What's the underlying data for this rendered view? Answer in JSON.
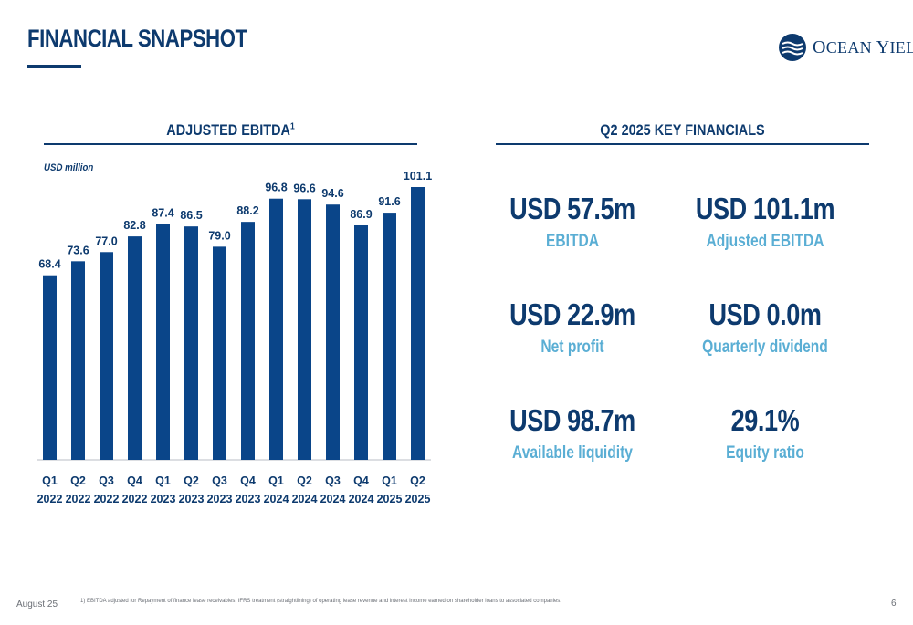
{
  "header": {
    "title": "FINANCIAL SNAPSHOT",
    "logo_text_o": "O",
    "logo_text_cean": "CEAN ",
    "logo_text_y": "Y",
    "logo_text_ield": "IELD",
    "accent_color": "#0d3a6e",
    "light_accent_color": "#5aaed4"
  },
  "left_section": {
    "title": "ADJUSTED EBITDA",
    "title_superscript": "1"
  },
  "right_section": {
    "title": "Q2 2025 KEY FINANCIALS",
    "kpis": [
      {
        "value": "USD 57.5m",
        "label": "EBITDA"
      },
      {
        "value": "USD 101.1m",
        "label": "Adjusted EBITDA"
      },
      {
        "value": "USD 22.9m",
        "label": "Net profit"
      },
      {
        "value": "USD 0.0m",
        "label": "Quarterly dividend"
      },
      {
        "value": "USD 98.7m",
        "label": "Available liquidity"
      },
      {
        "value": "29.1%",
        "label": "Equity ratio"
      }
    ]
  },
  "chart_data": {
    "type": "bar",
    "title": "ADJUSTED EBITDA",
    "unit_label": "USD million",
    "categories": [
      [
        "Q1",
        "2022"
      ],
      [
        "Q2",
        "2022"
      ],
      [
        "Q3",
        "2022"
      ],
      [
        "Q4",
        "2022"
      ],
      [
        "Q1",
        "2023"
      ],
      [
        "Q2",
        "2023"
      ],
      [
        "Q3",
        "2023"
      ],
      [
        "Q4",
        "2023"
      ],
      [
        "Q1",
        "2024"
      ],
      [
        "Q2",
        "2024"
      ],
      [
        "Q3",
        "2024"
      ],
      [
        "Q4",
        "2024"
      ],
      [
        "Q1",
        "2025"
      ],
      [
        "Q2",
        "2025"
      ]
    ],
    "values": [
      68.4,
      73.6,
      77.0,
      82.8,
      87.4,
      86.5,
      79.0,
      88.2,
      96.8,
      96.6,
      94.6,
      86.9,
      91.6,
      101.1
    ],
    "value_labels": [
      "68.4",
      "73.6",
      "77.0",
      "82.8",
      "87.4",
      "86.5",
      "79.0",
      "88.2",
      "96.8",
      "96.6",
      "94.6",
      "86.9",
      "91.6",
      "101.1"
    ],
    "ylim": [
      0,
      101.1
    ],
    "grid": false,
    "bar_color": "#0a4589"
  },
  "footer": {
    "date": "August 25",
    "footnote": "1)  EBITDA adjusted for Repayment of finance lease receivables, IFRS treatment (straightlining) of operating lease revenue and interest income earned on shareholder loans to associated companies.",
    "page_number": "6"
  }
}
